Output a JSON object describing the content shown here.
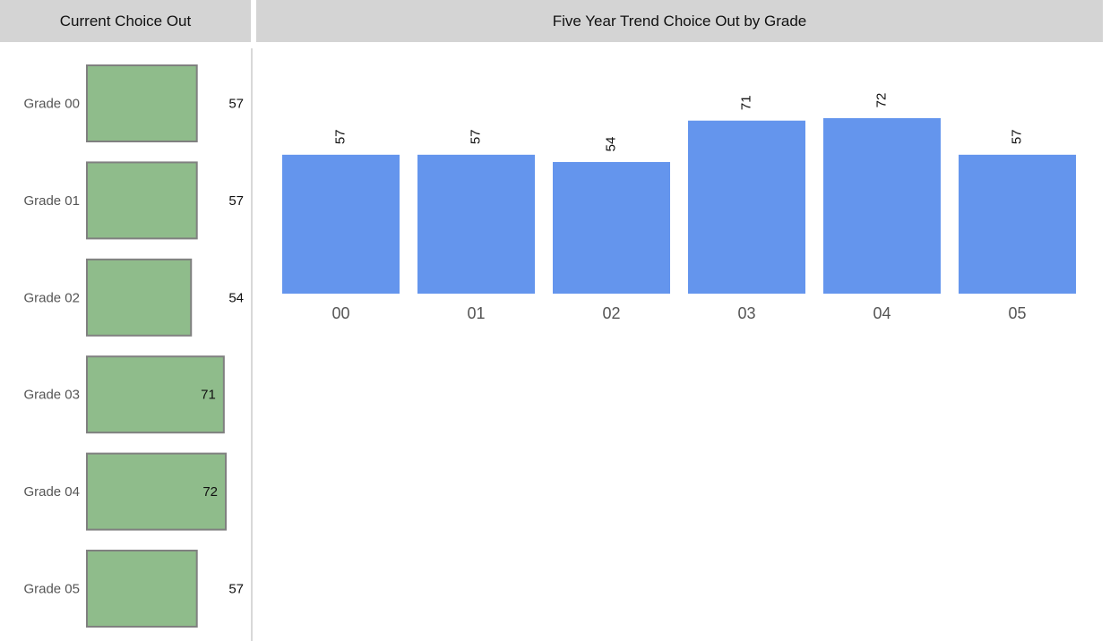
{
  "panels": {
    "current": {
      "title": "Current Choice Out"
    },
    "trend": {
      "title": "Five Year Trend Choice Out by Grade"
    }
  },
  "colors": {
    "current_bar": "#8fbc8b",
    "current_border": "#808080",
    "trend_bar": "#6495ed",
    "header_bg": "#d4d4d4"
  },
  "chart_data": [
    {
      "type": "bar",
      "orientation": "horizontal",
      "title": "Current Choice Out",
      "categories": [
        "Grade 00",
        "Grade 01",
        "Grade 02",
        "Grade 03",
        "Grade 04",
        "Grade 05"
      ],
      "values": [
        57,
        57,
        54,
        71,
        72,
        57
      ],
      "xlim": [
        0,
        72
      ]
    },
    {
      "type": "bar",
      "orientation": "vertical",
      "title": "Five Year Trend Choice Out by Grade",
      "categories": [
        "00",
        "01",
        "02",
        "03",
        "04",
        "05"
      ],
      "values": [
        57,
        57,
        54,
        71,
        72,
        57
      ],
      "ylim": [
        0,
        72
      ]
    }
  ]
}
